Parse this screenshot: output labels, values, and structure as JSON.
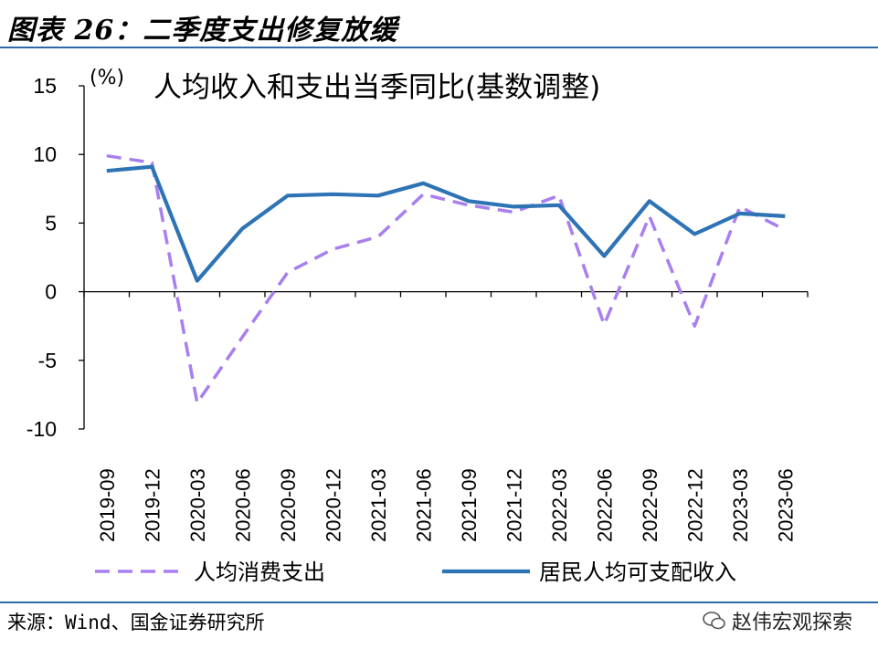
{
  "figure_title": "图表 26：二季度支出修复放缓",
  "source": "来源：Wind、国金证券研究所",
  "watermark": "赵伟宏观探索",
  "chart_data": {
    "type": "line",
    "title": "人均收入和支出当季同比(基数调整)",
    "ylabel": "(%)",
    "xlabel": "",
    "ylim": [
      -10,
      15
    ],
    "yticks": [
      -10,
      -5,
      0,
      5,
      10,
      15
    ],
    "categories": [
      "2019-09",
      "2019-12",
      "2020-03",
      "2020-06",
      "2020-09",
      "2020-12",
      "2021-03",
      "2021-06",
      "2021-09",
      "2021-12",
      "2022-03",
      "2022-06",
      "2022-09",
      "2022-12",
      "2023-03",
      "2023-06"
    ],
    "grid": false,
    "legend_position": "bottom",
    "series": [
      {
        "name": "人均消费支出",
        "style": "dashed",
        "color": "#a97ff0",
        "values": [
          9.9,
          9.4,
          -8.1,
          -3.3,
          1.4,
          3.1,
          4.0,
          7.1,
          6.3,
          5.8,
          7.0,
          -2.4,
          5.5,
          -2.5,
          6.2,
          4.5
        ]
      },
      {
        "name": "居民人均可支配收入",
        "style": "solid",
        "color": "#2e74b5",
        "values": [
          8.8,
          9.1,
          0.8,
          4.6,
          7.0,
          7.1,
          7.0,
          7.9,
          6.6,
          6.2,
          6.3,
          2.6,
          6.6,
          4.2,
          5.7,
          5.5
        ]
      }
    ]
  }
}
